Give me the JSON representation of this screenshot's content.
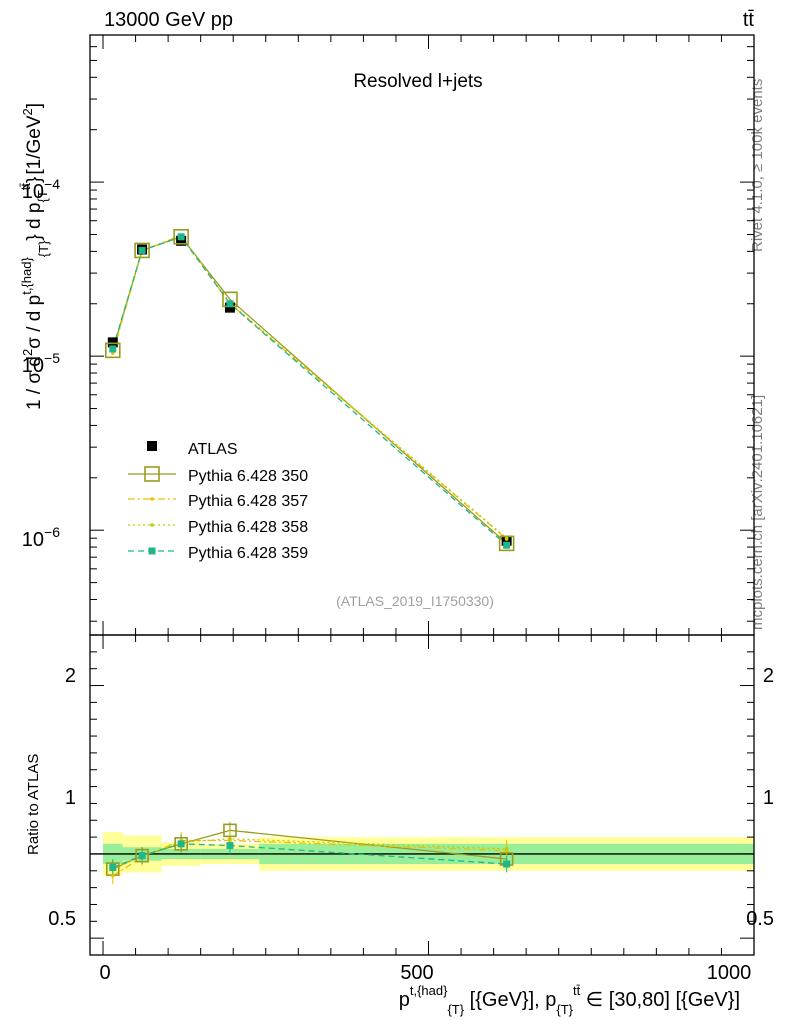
{
  "header": {
    "left": "13000 GeV pp",
    "right": "tt̄"
  },
  "side": {
    "rivet": "Rivet 4.1.0, ≥ 100k events",
    "mcplots": "mcplots.cern.ch [arXiv:2401.10621]"
  },
  "chart_data": {
    "type": "scatter",
    "title": "Resolved l+jets",
    "reference": "(ATLAS_2019_I1750330)",
    "xlabel": "p^{t,{had}}_{T} [{GeV}], p_{T}^{tt̄} ∈ [30,80] [{GeV}]",
    "xlabel_parts": {
      "p1": "p",
      "sup1": "t,{had}",
      "sub1": "{T}",
      "mid1": " [{GeV}], p",
      "sub2": "{T}",
      "sup2": "tt̄",
      "tail": " ∈ [30,80] [{GeV}]"
    },
    "ylabel_main": "1 / σ d²σ / d p^{t,{had}}_{T} d p_{T}^{tt̄} [1/GeV²]",
    "ylabel_parts": {
      "a": "1 / σ d",
      "a_sup": "2",
      "b": "σ / d p",
      "b_sup": "t,{had}",
      "b_sub": "{T}",
      "c": "} d p",
      "c_sub": "{T",
      "c_sup": "tt̄",
      "d": "}",
      "e": "[1/GeV",
      "e_sup": "2",
      "f": "]"
    },
    "ylabel_ratio": "Ratio to ATLAS",
    "xlim": [
      -20,
      1000
    ],
    "ylim_main": [
      2.5e-07,
      0.0007
    ],
    "ylim_ratio": [
      0.4,
      2.3
    ],
    "yscale_main": "log",
    "x_ticks": [
      "0",
      "500",
      "1000"
    ],
    "y_ticks_main": [
      {
        "base": "10",
        "exp": "−4"
      },
      {
        "base": "10",
        "exp": "−5"
      },
      {
        "base": "10",
        "exp": "−6"
      }
    ],
    "y_ticks_ratio": [
      "2",
      "1",
      "0.5"
    ],
    "x": [
      15,
      60,
      120,
      195,
      620
    ],
    "x_edges": [
      [
        0,
        30
      ],
      [
        30,
        90
      ],
      [
        90,
        150
      ],
      [
        150,
        240
      ],
      [
        240,
        1000
      ]
    ],
    "data": {
      "name": "ATLAS",
      "values": [
        1.2e-05,
        4.1e-05,
        4.6e-05,
        1.9e-05,
        8.7e-07
      ],
      "band_stat": [
        0.06,
        0.04,
        0.03,
        0.03,
        0.06
      ],
      "band_total": [
        0.13,
        0.11,
        0.07,
        0.06,
        0.1
      ]
    },
    "series": [
      {
        "name": "Pythia 6.428 350",
        "color": "#9a9a1f",
        "style": "solid",
        "marker": "open-square",
        "values": [
          1.08e-05,
          4.05e-05,
          4.85e-05,
          2.12e-05,
          8.4e-07
        ],
        "ratio": [
          0.91,
          0.99,
          1.06,
          1.14,
          0.97
        ]
      },
      {
        "name": "Pythia 6.428 357",
        "color": "#e6c200",
        "style": "dashdot",
        "marker": "dot",
        "values": [
          1.04e-05,
          4.02e-05,
          4.95e-05,
          2e-05,
          8.9e-07
        ],
        "ratio": [
          0.87,
          0.98,
          1.08,
          1.08,
          1.02
        ]
      },
      {
        "name": "Pythia 6.428 358",
        "color": "#c8c800",
        "style": "dotted",
        "marker": "dot",
        "values": [
          1.1e-05,
          4.05e-05,
          4.9e-05,
          2.02e-05,
          9e-07
        ],
        "ratio": [
          0.91,
          0.99,
          1.07,
          1.09,
          1.03
        ]
      },
      {
        "name": "Pythia 6.428 359",
        "color": "#1fb68a",
        "style": "dashed",
        "marker": "filled-square",
        "values": [
          1.1e-05,
          4.05e-05,
          4.85e-05,
          2e-05,
          8.2e-07
        ],
        "ratio": [
          0.92,
          0.99,
          1.06,
          1.05,
          0.94
        ]
      }
    ],
    "legend_position": "lower-left"
  }
}
